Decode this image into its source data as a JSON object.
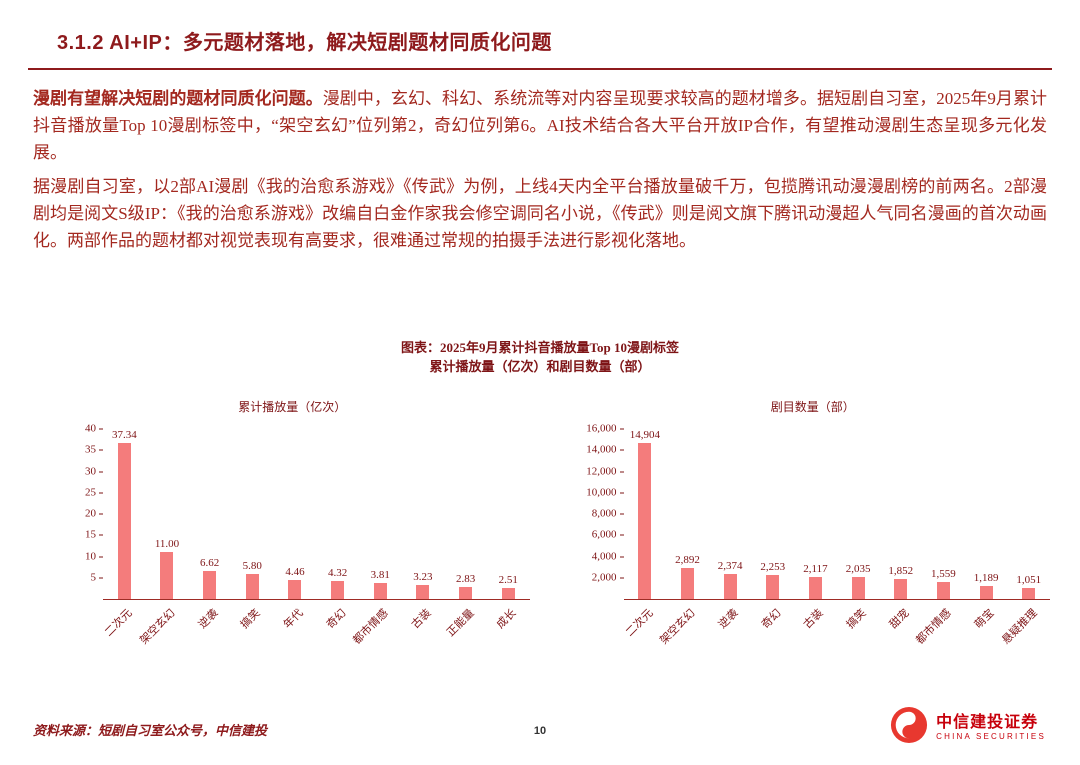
{
  "slide": {
    "title": "3.1.2 AI+IP：多元题材落地，解决短剧题材同质化问题",
    "paragraphs": [
      {
        "lead": "漫剧有望解决短剧的题材同质化问题。",
        "rest": "漫剧中，玄幻、科幻、系统流等对内容呈现要求较高的题材增多。据短剧自习室，2025年9月累计抖音播放量Top 10漫剧标签中，“架空玄幻”位列第2，奇幻位列第6。AI技术结合各大平台开放IP合作，有望推动漫剧生态呈现多元化发展。"
      },
      {
        "lead": "",
        "rest": "据漫剧自习室，以2部AI漫剧《我的治愈系游戏》《传武》为例，上线4天内全平台播放量破千万，包揽腾讯动漫漫剧榜的前两名。2部漫剧均是阅文S级IP：《我的治愈系游戏》改编自白金作家我会修空调同名小说，《传武》则是阅文旗下腾讯动漫超人气同名漫画的首次动画化。两部作品的题材都对视觉表现有高要求，很难通过常规的拍摄手法进行影视化落地。"
      }
    ],
    "figure_title_line1": "图表：2025年9月累计抖音播放量Top 10漫剧标签",
    "figure_title_line2": "累计播放量（亿次）和剧目数量（部）",
    "footer_source": "资料来源：短剧自习室公众号，中信建投",
    "page_number": "10",
    "logo_cn": "中信建投证券",
    "logo_en": "CHINA SECURITIES"
  },
  "colors": {
    "accent_dark_red": "#8E1A1C",
    "body_red": "#A3281F",
    "bar_salmon": "#F47C7C",
    "logo_red": "#C7000B"
  },
  "chart_data": [
    {
      "type": "bar",
      "title": "累计播放量（亿次）",
      "categories": [
        "二次元",
        "架空玄幻",
        "逆袭",
        "搞笑",
        "年代",
        "奇幻",
        "都市情感",
        "古装",
        "正能量",
        "成长"
      ],
      "values": [
        37.34,
        11.0,
        6.62,
        5.8,
        4.46,
        4.32,
        3.81,
        3.23,
        2.83,
        2.51
      ],
      "labels": [
        "37.34",
        "11.00",
        "6.62",
        "5.80",
        "4.46",
        "4.32",
        "3.81",
        "3.23",
        "2.83",
        "2.51"
      ],
      "ylim": [
        0,
        40
      ],
      "yticks": [
        5,
        10,
        15,
        20,
        25,
        30,
        35,
        40
      ],
      "ytick_labels": [
        "5",
        "10",
        "15",
        "20",
        "25",
        "30",
        "35",
        "40"
      ],
      "bar_color": "#F47C7C",
      "grid": false,
      "legend": false
    },
    {
      "type": "bar",
      "title": "剧目数量（部）",
      "categories": [
        "二次元",
        "架空玄幻",
        "逆袭",
        "奇幻",
        "古装",
        "搞笑",
        "甜宠",
        "都市情感",
        "萌宝",
        "悬疑推理"
      ],
      "values": [
        14904,
        2892,
        2374,
        2253,
        2117,
        2035,
        1852,
        1559,
        1189,
        1051
      ],
      "labels": [
        "14,904",
        "2,892",
        "2,374",
        "2,253",
        "2,117",
        "2,035",
        "1,852",
        "1,559",
        "1,189",
        "1,051"
      ],
      "ylim": [
        0,
        16000
      ],
      "yticks": [
        2000,
        4000,
        6000,
        8000,
        10000,
        12000,
        14000,
        16000
      ],
      "ytick_labels": [
        "2,000",
        "4,000",
        "6,000",
        "8,000",
        "10,000",
        "12,000",
        "14,000",
        "16,000"
      ],
      "bar_color": "#F47C7C",
      "grid": false,
      "legend": false
    }
  ]
}
